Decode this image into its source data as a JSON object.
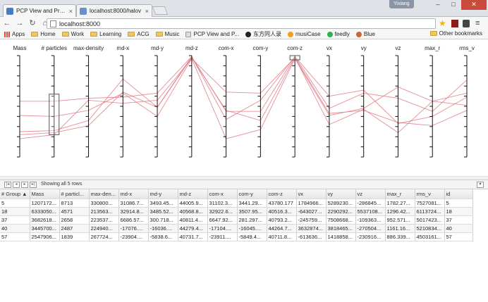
{
  "browser": {
    "tabs": [
      {
        "label": "PCP View and Prope",
        "active": true,
        "favicon_color": "#4a7ac7"
      },
      {
        "label": "localhost:8000/halov",
        "active": false,
        "favicon_color": "#6a8fc9"
      }
    ],
    "user_badge": "Yixiang",
    "window_controls": {
      "minimize": "–",
      "maximize": "□",
      "close": "✕"
    },
    "url": "localhost:8000",
    "bookmarks": [
      {
        "label": "Apps",
        "icon": "apps-grid-icon"
      },
      {
        "label": "Home",
        "icon": "folder-icon"
      },
      {
        "label": "Work",
        "icon": "folder-icon"
      },
      {
        "label": "Learning",
        "icon": "folder-icon"
      },
      {
        "label": "ACG",
        "icon": "folder-icon"
      },
      {
        "label": "Music",
        "icon": "folder-icon"
      },
      {
        "label": "PCP View and P...",
        "icon": "page-icon"
      },
      {
        "label": "东方同人录",
        "icon": "site-icon"
      },
      {
        "label": "musiCase",
        "icon": "site-icon"
      },
      {
        "label": "feedly",
        "icon": "feedly-icon"
      },
      {
        "label": "Blue",
        "icon": "site-icon"
      }
    ],
    "other_bookmarks": "Other bookmarks"
  },
  "pcp": {
    "axes": [
      "Mass",
      "# particles",
      "max-density",
      "md-x",
      "md-y",
      "md-z",
      "com-x",
      "com-y",
      "com-z",
      "vx",
      "vy",
      "vz",
      "max_r",
      "rms_v"
    ],
    "line_color": "#e07a86",
    "brush_color": "#555555",
    "brushes": [
      {
        "axis": "# particles",
        "from": 0.22,
        "to": 0.62
      },
      {
        "axis": "com-z",
        "from": 0.96,
        "to": 1.0
      }
    ],
    "lines": [
      [
        0.18,
        0.22,
        0.56,
        0.53,
        0.56,
        0.97,
        0.64,
        0.63,
        0.98,
        0.32,
        0.47,
        0.24,
        0.55,
        0.51
      ],
      [
        0.55,
        0.55,
        0.58,
        0.59,
        0.63,
        0.99,
        0.45,
        0.45,
        0.99,
        0.6,
        0.66,
        0.33,
        0.4,
        0.59
      ],
      [
        0.41,
        0.4,
        0.46,
        0.63,
        0.4,
        0.97,
        0.18,
        0.27,
        0.97,
        0.41,
        0.48,
        0.69,
        0.55,
        0.63
      ],
      [
        0.22,
        0.24,
        0.31,
        0.64,
        0.49,
        0.98,
        0.46,
        0.36,
        0.98,
        0.43,
        0.46,
        0.34,
        0.31,
        0.46
      ],
      [
        0.25,
        0.26,
        0.36,
        0.77,
        0.49,
        0.99,
        0.37,
        0.56,
        0.99,
        0.48,
        0.63,
        0.58,
        0.45,
        0.76
      ]
    ]
  },
  "grid": {
    "status": "Showing all 5 rows",
    "columns": [
      "# Group ▲",
      "Mass",
      "# particl...",
      "max-den...",
      "md-x",
      "md-y",
      "md-z",
      "com-x",
      "com-y",
      "com-z",
      "vx",
      "vy",
      "vz",
      "max_r",
      "rms_v",
      "id"
    ],
    "rows": [
      [
        "5",
        "1207172...",
        "8713",
        "330800...",
        "31086.7...",
        "3493.45...",
        "44005.9...",
        "31102.3...",
        "3441.29...",
        "43780.177",
        "1784966...",
        "5289230...",
        "-286845...",
        "1782.27...",
        "7527081...",
        "5"
      ],
      [
        "18",
        "6333050...",
        "4571",
        "213563...",
        "32914.8...",
        "3485.52...",
        "40568.8...",
        "32922.6...",
        "3507.95...",
        "40516.3...",
        "-643027...",
        "2290292...",
        "5537108...",
        "1296.42...",
        "6113724...",
        "18"
      ],
      [
        "37",
        "3682618...",
        "2658",
        "223537...",
        "6686.57...",
        "300.718...",
        "40811.4...",
        "6647.92...",
        "281.297...",
        "40793.2...",
        "-245759...",
        "7508668...",
        "-109363...",
        "952.571...",
        "5017423...",
        "37"
      ],
      [
        "40",
        "3445700...",
        "2487",
        "224940...",
        "-17076....",
        "-16036....",
        "44279.4...",
        "-17104....",
        "-16045....",
        "44264.7...",
        "3632874...",
        "3818465...",
        "-270504...",
        "1161.16...",
        "5210834...",
        "40"
      ],
      [
        "57",
        "2547906...",
        "1839",
        "267724...",
        "-23904....",
        "-5838.6...",
        "40731.7...",
        "-23911....",
        "-5849.4...",
        "40711.8...",
        "-613636...",
        "1418858...",
        "-230916...",
        "886.339...",
        "4503161...",
        "57"
      ]
    ]
  }
}
